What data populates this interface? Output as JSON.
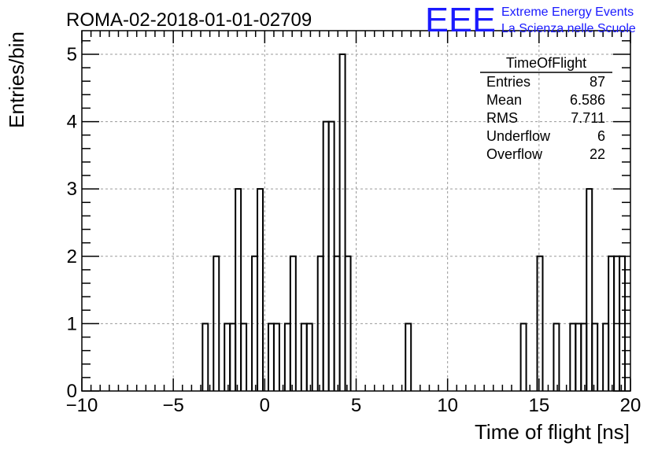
{
  "header": {
    "run_title": "ROMA-02-2018-01-01-02709",
    "logo_text": "EEE",
    "logo_line1": "Extreme Energy Events",
    "logo_line2": "La Scienza nelle Scuole"
  },
  "stats": {
    "title": "TimeOfFlight",
    "rows": [
      {
        "label": "Entries",
        "value": "87"
      },
      {
        "label": "Mean",
        "value": "6.586"
      },
      {
        "label": "RMS",
        "value": "7.711"
      },
      {
        "label": "Underflow",
        "value": "6"
      },
      {
        "label": "Overflow",
        "value": "22"
      }
    ]
  },
  "colors": {
    "logo": "#1a1aff",
    "grid": "#9a9a9a",
    "line": "#000000"
  },
  "chart_data": {
    "type": "bar",
    "style": "step-histogram",
    "xlabel": "Time of flight [ns]",
    "ylabel": "Entries/bin",
    "xlim": [
      -10,
      20
    ],
    "ylim": [
      0,
      5.35
    ],
    "xticks": [
      -10,
      -5,
      0,
      5,
      10,
      15,
      20
    ],
    "xtick_labels": [
      "−10",
      "−5",
      "0",
      "5",
      "10",
      "15",
      "20"
    ],
    "yticks": [
      0,
      1,
      2,
      3,
      4,
      5
    ],
    "ytick_labels": [
      "0",
      "1",
      "2",
      "3",
      "4",
      "5"
    ],
    "grid": true,
    "bin_width": 0.3,
    "bins": [
      {
        "x": -3.4,
        "y": 1
      },
      {
        "x": -2.8,
        "y": 2
      },
      {
        "x": -2.2,
        "y": 1
      },
      {
        "x": -1.9,
        "y": 1
      },
      {
        "x": -1.6,
        "y": 3
      },
      {
        "x": -1.3,
        "y": 1
      },
      {
        "x": -0.7,
        "y": 2
      },
      {
        "x": -0.4,
        "y": 3
      },
      {
        "x": 0.2,
        "y": 1
      },
      {
        "x": 0.5,
        "y": 1
      },
      {
        "x": 1.1,
        "y": 1
      },
      {
        "x": 1.4,
        "y": 2
      },
      {
        "x": 2.0,
        "y": 1
      },
      {
        "x": 2.3,
        "y": 1
      },
      {
        "x": 2.9,
        "y": 2
      },
      {
        "x": 3.2,
        "y": 4
      },
      {
        "x": 3.5,
        "y": 4
      },
      {
        "x": 3.8,
        "y": 2
      },
      {
        "x": 4.1,
        "y": 5
      },
      {
        "x": 4.4,
        "y": 2
      },
      {
        "x": 7.7,
        "y": 1
      },
      {
        "x": 14.0,
        "y": 1
      },
      {
        "x": 14.9,
        "y": 2
      },
      {
        "x": 15.8,
        "y": 1
      },
      {
        "x": 16.7,
        "y": 1
      },
      {
        "x": 17.0,
        "y": 1
      },
      {
        "x": 17.3,
        "y": 1
      },
      {
        "x": 17.6,
        "y": 3
      },
      {
        "x": 17.9,
        "y": 1
      },
      {
        "x": 18.5,
        "y": 1
      },
      {
        "x": 18.8,
        "y": 2
      },
      {
        "x": 19.1,
        "y": 2
      },
      {
        "x": 19.4,
        "y": 2
      }
    ]
  }
}
